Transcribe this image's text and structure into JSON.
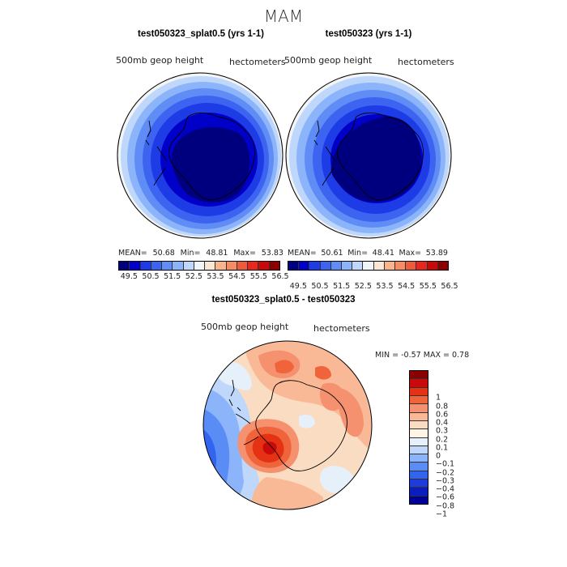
{
  "season_title": "MAM",
  "panels": [
    {
      "title": "test050323_splat0.5 (yrs 1-1)",
      "variable": "500mb geop height",
      "units": "hectometers",
      "stats": {
        "mean_label": "MEAN=",
        "mean": "50.68",
        "min_label": "Min=",
        "min": "48.81",
        "max_label": "Max=",
        "max": "53.83"
      }
    },
    {
      "title": "test050323 (yrs 1-1)",
      "variable": "500mb geop height",
      "units": "hectometers",
      "stats": {
        "mean_label": "MEAN=",
        "mean": "50.61",
        "min_label": "Min=",
        "min": "48.41",
        "max_label": "Max=",
        "max": "53.89"
      }
    }
  ],
  "diff_panel": {
    "title": "test050323_splat0.5 - test050323",
    "variable": "500mb geop height",
    "units": "hectometers",
    "min_label": "MIN =",
    "min": "-0.57",
    "max_label": "MAX =",
    "max": "0.78"
  },
  "colors": {
    "abs_scale": [
      "#00007f",
      "#0000c8",
      "#1e3ce6",
      "#3c64f0",
      "#5f8cf5",
      "#8cb4fa",
      "#bed7fa",
      "#f0f5fa",
      "#fae6d2",
      "#fab48c",
      "#f58c64",
      "#f05a3c",
      "#e6281e",
      "#c80a0a",
      "#8c0000"
    ],
    "diff_scale": [
      "#000096",
      "#0a1ebe",
      "#1e3cdc",
      "#3264f0",
      "#5a8cf5",
      "#8cb4fa",
      "#bed7fa",
      "#e6f0fa",
      "#fff5e6",
      "#fadcc3",
      "#fab996",
      "#f5916e",
      "#f0643c",
      "#e63214",
      "#c80a0a",
      "#8c0000"
    ]
  },
  "chart_data": [
    {
      "type": "heatmap",
      "title": "test050323_splat0.5 (yrs 1-1)",
      "projection": "south polar stereographic",
      "variable": "500mb geop height",
      "units": "hectometers",
      "contour_levels": [
        49.5,
        50,
        50.5,
        51,
        51.5,
        52,
        52.5,
        53,
        53.5,
        54,
        54.5,
        55,
        55.5,
        56,
        56.5
      ],
      "colorbar_tick_labels": [
        "49.5",
        "50.5",
        "51.5",
        "52.5",
        "53.5",
        "54.5",
        "55.5",
        "56.5"
      ],
      "mean": 50.68,
      "min": 48.81,
      "max": 53.83
    },
    {
      "type": "heatmap",
      "title": "test050323 (yrs 1-1)",
      "projection": "south polar stereographic",
      "variable": "500mb geop height",
      "units": "hectometers",
      "contour_levels": [
        49.5,
        50,
        50.5,
        51,
        51.5,
        52,
        52.5,
        53,
        53.5,
        54,
        54.5,
        55,
        55.5,
        56,
        56.5
      ],
      "colorbar_tick_labels": [
        "49.5",
        "50.5",
        "51.5",
        "52.5",
        "53.5",
        "54.5",
        "55.5",
        "56.5"
      ],
      "mean": 50.61,
      "min": 48.41,
      "max": 53.89
    },
    {
      "type": "heatmap",
      "title": "test050323_splat0.5 - test050323",
      "projection": "south polar stereographic",
      "variable": "500mb geop height",
      "units": "hectometers",
      "contour_levels": [
        -1,
        -0.8,
        -0.6,
        -0.4,
        -0.3,
        -0.2,
        -0.1,
        0,
        0.1,
        0.2,
        0.3,
        0.4,
        0.6,
        0.8,
        1
      ],
      "colorbar_tick_labels": [
        "1",
        "0.8",
        "0.6",
        "0.4",
        "0.3",
        "0.2",
        "0.1",
        "0",
        "−0.1",
        "−0.2",
        "−0.3",
        "−0.4",
        "−0.6",
        "−0.8",
        "−1"
      ],
      "min": -0.57,
      "max": 0.78
    }
  ]
}
